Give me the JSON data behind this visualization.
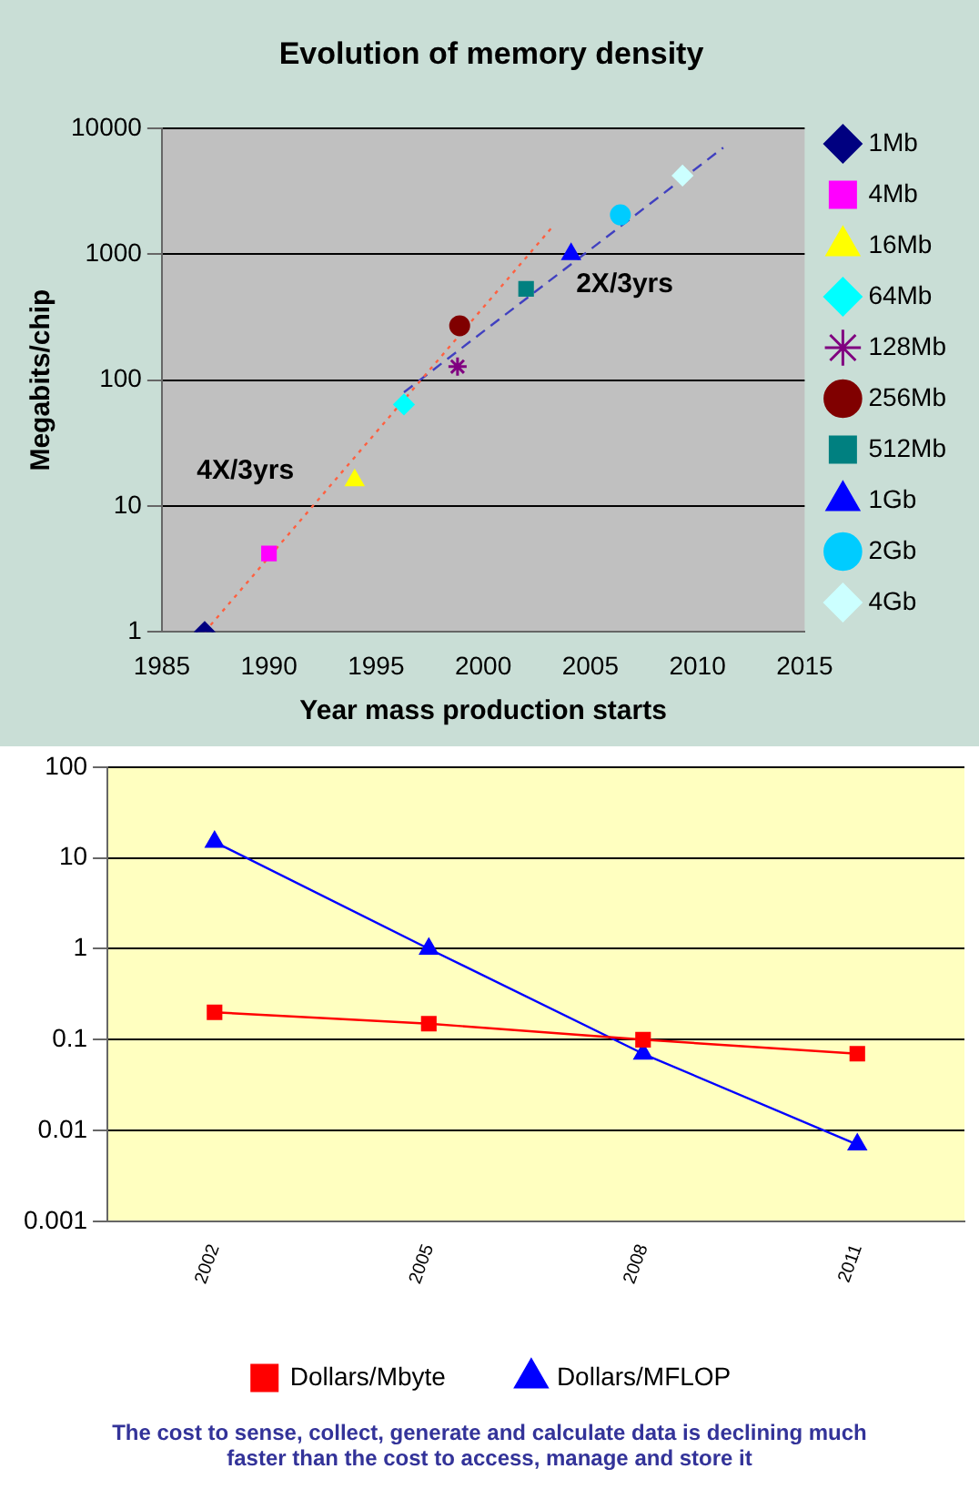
{
  "chart_data": [
    {
      "type": "scatter",
      "title": "Evolution of memory density",
      "xlabel": "Year mass production starts",
      "ylabel": "Megabits/chip",
      "xlim": [
        1985,
        2015
      ],
      "xticks": [
        1985,
        1990,
        1995,
        2000,
        2005,
        2010,
        2015
      ],
      "ylim": [
        1,
        10000
      ],
      "yticks": [
        1,
        10,
        100,
        1000,
        10000
      ],
      "log": "y",
      "grid": "y",
      "legend": "right",
      "series": [
        {
          "name": "1Mb",
          "color": "#000080",
          "marker": "diamond",
          "x": [
            1987
          ],
          "values": [
            1
          ]
        },
        {
          "name": "4Mb",
          "color": "#ff00ff",
          "marker": "square",
          "x": [
            1990
          ],
          "values": [
            4.2
          ]
        },
        {
          "name": "16Mb",
          "color": "#ffff00",
          "marker": "triangle",
          "x": [
            1994
          ],
          "values": [
            16
          ]
        },
        {
          "name": "64Mb",
          "color": "#00ffff",
          "marker": "diamond",
          "x": [
            1996.3
          ],
          "values": [
            64
          ]
        },
        {
          "name": "128Mb",
          "color": "#800080",
          "marker": "cross",
          "x": [
            1998.8
          ],
          "values": [
            128
          ]
        },
        {
          "name": "256Mb",
          "color": "#800000",
          "marker": "circle",
          "x": [
            1998.9
          ],
          "values": [
            270
          ]
        },
        {
          "name": "512Mb",
          "color": "#008080",
          "marker": "square",
          "x": [
            2002
          ],
          "values": [
            530
          ]
        },
        {
          "name": "1Gb",
          "color": "#0000ff",
          "marker": "triangle",
          "x": [
            2004.1
          ],
          "values": [
            1000
          ]
        },
        {
          "name": "2Gb",
          "color": "#00ccff",
          "marker": "circle",
          "x": [
            2006.4
          ],
          "values": [
            2050
          ]
        },
        {
          "name": "4Gb",
          "color": "#ccffff",
          "marker": "diamond",
          "x": [
            2009.3
          ],
          "values": [
            4200
          ]
        },
        {
          "type": "line",
          "color": "#ff6040",
          "marker": "none",
          "line_style": "dotted",
          "x": [
            1987,
            2003.3
          ],
          "values": [
            1,
            1700
          ]
        },
        {
          "type": "line",
          "color": "#4040c0",
          "marker": "none",
          "line_style": "dashed",
          "x": [
            1996.3,
            2011.2
          ],
          "values": [
            80,
            7000
          ]
        }
      ],
      "annotations": [
        "4X/3yrs",
        "2X/3yrs"
      ]
    },
    {
      "type": "line",
      "categories": [
        "2002",
        "2005",
        "2008",
        "2011"
      ],
      "ylim": [
        0.001,
        100
      ],
      "yticks": [
        0.001,
        0.01,
        0.1,
        1,
        10,
        100
      ],
      "log": "y",
      "grid": "y",
      "legend": "bottom",
      "series": [
        {
          "name": "Dollars/Mbyte",
          "color": "#ff0000",
          "marker": "square",
          "values": [
            0.2,
            0.15,
            0.1,
            0.07
          ]
        },
        {
          "name": "Dollars/MFLOP",
          "color": "#0000ff",
          "marker": "triangle",
          "values": [
            15,
            1,
            0.07,
            0.007
          ]
        }
      ],
      "annotations": [
        "The cost to sense, collect, generate and calculate data is declining much faster than the cost to access, manage and store it"
      ]
    }
  ]
}
